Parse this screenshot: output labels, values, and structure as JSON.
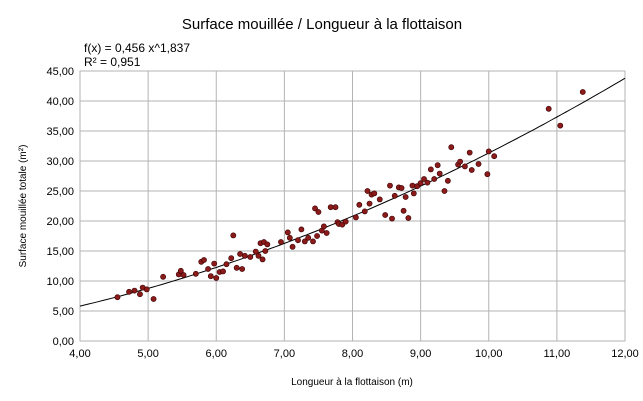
{
  "chart_data": {
    "type": "scatter",
    "title": "Surface mouillée / Longueur à la flottaison",
    "equation_line1": "f(x) = 0,456 x^1,837",
    "equation_line2": "R² = 0,951",
    "xlabel": "Longueur à la flottaison (m)",
    "ylabel": "Surface mouillée totale (m²)",
    "xlim": [
      4,
      12
    ],
    "ylim": [
      0,
      45
    ],
    "x_ticks": [
      "4,00",
      "5,00",
      "6,00",
      "7,00",
      "8,00",
      "9,00",
      "10,00",
      "11,00",
      "12,00"
    ],
    "y_ticks": [
      "0,00",
      "5,00",
      "10,00",
      "15,00",
      "20,00",
      "25,00",
      "30,00",
      "35,00",
      "40,00",
      "45,00"
    ],
    "grid": true,
    "marker_color": "#8b1a1a",
    "trendline": {
      "model": "power",
      "a": 0.456,
      "b": 1.837
    },
    "points": [
      [
        4.55,
        7.3
      ],
      [
        4.72,
        8.2
      ],
      [
        4.8,
        8.4
      ],
      [
        4.88,
        7.8
      ],
      [
        4.92,
        8.9
      ],
      [
        4.98,
        8.6
      ],
      [
        5.08,
        7.0
      ],
      [
        5.22,
        10.7
      ],
      [
        5.45,
        11.1
      ],
      [
        5.48,
        11.7
      ],
      [
        5.52,
        11.0
      ],
      [
        5.7,
        11.2
      ],
      [
        5.78,
        13.2
      ],
      [
        5.82,
        13.5
      ],
      [
        5.88,
        12.0
      ],
      [
        5.92,
        10.8
      ],
      [
        5.97,
        12.9
      ],
      [
        6.0,
        10.5
      ],
      [
        6.05,
        11.5
      ],
      [
        6.1,
        11.6
      ],
      [
        6.15,
        12.8
      ],
      [
        6.22,
        13.8
      ],
      [
        6.25,
        17.6
      ],
      [
        6.3,
        12.2
      ],
      [
        6.35,
        14.5
      ],
      [
        6.38,
        12.0
      ],
      [
        6.42,
        14.2
      ],
      [
        6.5,
        14.0
      ],
      [
        6.58,
        14.9
      ],
      [
        6.62,
        14.2
      ],
      [
        6.65,
        16.3
      ],
      [
        6.68,
        13.6
      ],
      [
        6.72,
        15.0
      ],
      [
        6.7,
        16.5
      ],
      [
        6.75,
        16.1
      ],
      [
        6.95,
        16.5
      ],
      [
        7.05,
        18.1
      ],
      [
        7.08,
        17.2
      ],
      [
        7.12,
        15.7
      ],
      [
        7.2,
        16.8
      ],
      [
        7.25,
        18.6
      ],
      [
        7.3,
        16.6
      ],
      [
        7.35,
        17.2
      ],
      [
        7.42,
        16.6
      ],
      [
        7.45,
        22.1
      ],
      [
        7.48,
        17.5
      ],
      [
        7.5,
        21.5
      ],
      [
        7.55,
        18.4
      ],
      [
        7.58,
        19.1
      ],
      [
        7.62,
        18.0
      ],
      [
        7.68,
        22.3
      ],
      [
        7.75,
        22.3
      ],
      [
        7.78,
        19.8
      ],
      [
        7.8,
        19.5
      ],
      [
        7.85,
        19.4
      ],
      [
        7.9,
        19.9
      ],
      [
        8.05,
        20.6
      ],
      [
        8.1,
        22.7
      ],
      [
        8.18,
        21.6
      ],
      [
        8.22,
        25.0
      ],
      [
        8.28,
        24.4
      ],
      [
        8.25,
        22.9
      ],
      [
        8.32,
        24.6
      ],
      [
        8.4,
        23.6
      ],
      [
        8.48,
        21.0
      ],
      [
        8.55,
        25.9
      ],
      [
        8.58,
        20.4
      ],
      [
        8.62,
        24.2
      ],
      [
        8.68,
        25.6
      ],
      [
        8.72,
        25.5
      ],
      [
        8.75,
        21.7
      ],
      [
        8.78,
        24.0
      ],
      [
        8.82,
        20.5
      ],
      [
        8.88,
        25.9
      ],
      [
        8.9,
        24.6
      ],
      [
        8.95,
        25.8
      ],
      [
        9.0,
        26.3
      ],
      [
        9.05,
        27.0
      ],
      [
        9.1,
        26.4
      ],
      [
        9.15,
        28.6
      ],
      [
        9.2,
        27.0
      ],
      [
        9.25,
        29.3
      ],
      [
        9.28,
        27.9
      ],
      [
        9.35,
        25.0
      ],
      [
        9.4,
        26.7
      ],
      [
        9.45,
        32.3
      ],
      [
        9.55,
        29.4
      ],
      [
        9.58,
        29.9
      ],
      [
        9.65,
        29.1
      ],
      [
        9.72,
        31.4
      ],
      [
        9.75,
        28.5
      ],
      [
        9.85,
        29.5
      ],
      [
        9.98,
        27.8
      ],
      [
        10.0,
        31.6
      ],
      [
        10.08,
        30.8
      ],
      [
        10.88,
        38.7
      ],
      [
        11.05,
        35.9
      ],
      [
        11.38,
        41.5
      ]
    ]
  }
}
